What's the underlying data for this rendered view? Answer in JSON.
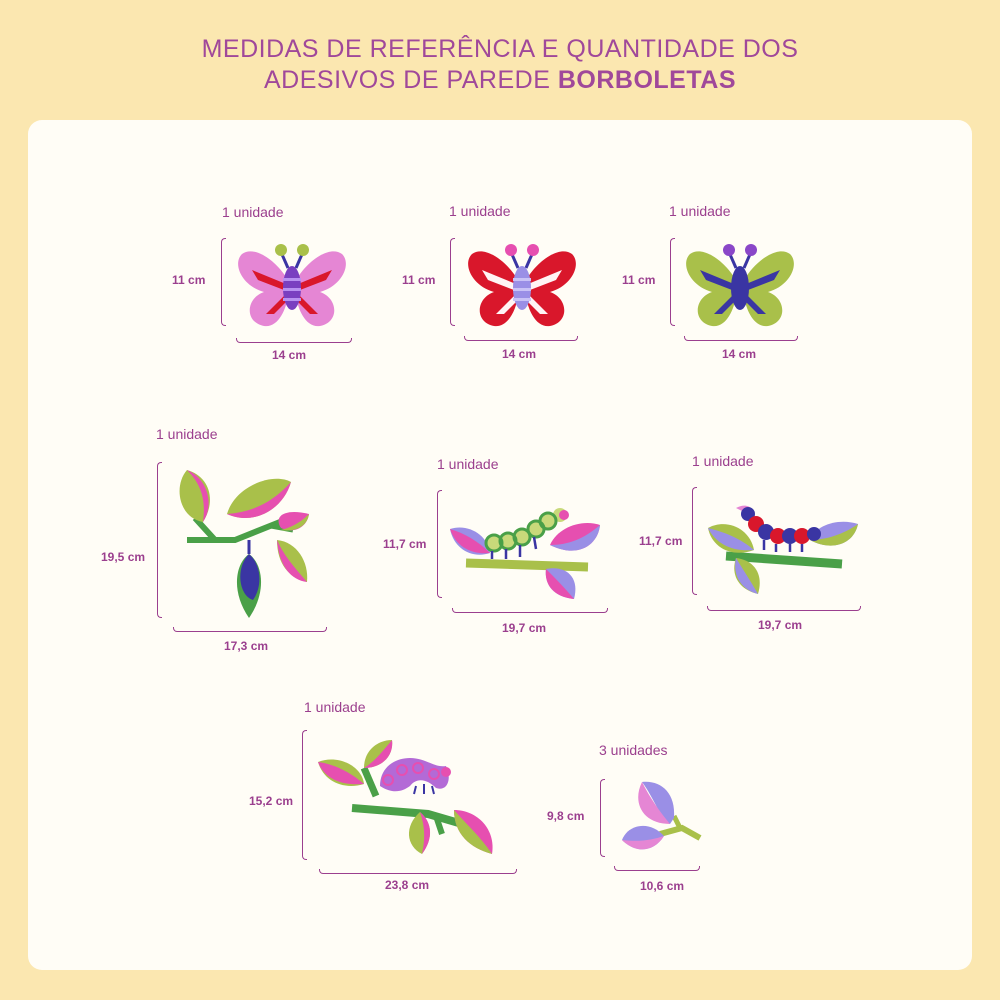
{
  "header": {
    "line1": "MEDIDAS DE REFERÊNCIA E QUANTIDADE DOS",
    "line2_prefix": "ADESIVOS DE PAREDE ",
    "line2_bold": "BORBOLETAS"
  },
  "items": [
    {
      "quantity": "1 unidade",
      "height": "11 cm",
      "width": "14 cm"
    },
    {
      "quantity": "1 unidade",
      "height": "11 cm",
      "width": "14 cm"
    },
    {
      "quantity": "1 unidade",
      "height": "11 cm",
      "width": "14 cm"
    },
    {
      "quantity": "1 unidade",
      "height": "19,5 cm",
      "width": "17,3 cm"
    },
    {
      "quantity": "1 unidade",
      "height": "11,7 cm",
      "width": "19,7 cm"
    },
    {
      "quantity": "1 unidade",
      "height": "11,7 cm",
      "width": "19,7 cm"
    },
    {
      "quantity": "1 unidade",
      "height": "15,2 cm",
      "width": "23,8 cm"
    },
    {
      "quantity": "3 unidades",
      "height": "9,8 cm",
      "width": "10,6 cm"
    }
  ],
  "colors": {
    "background": "#fbe7b0",
    "text": "#9b3f8e",
    "pink": "#e64fb0",
    "red": "#d9172b",
    "green": "#a9c04a",
    "blue": "#3a35a3",
    "lilac": "#9a8fe6"
  }
}
